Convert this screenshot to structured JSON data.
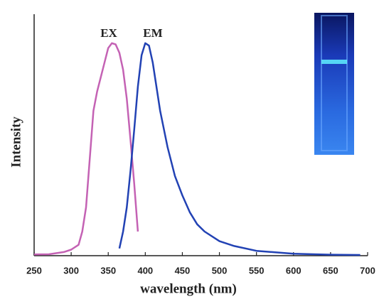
{
  "chart_data": {
    "type": "line",
    "xlabel": "wavelength (nm)",
    "ylabel": "Intensity",
    "xlim": [
      250,
      700
    ],
    "xticks": [
      250,
      300,
      350,
      400,
      450,
      500,
      550,
      600,
      650,
      700
    ],
    "ylim": [
      0,
      1
    ],
    "annotations": [
      "EX",
      "EM"
    ],
    "series": [
      {
        "name": "EX",
        "color": "#c462b4",
        "x": [
          250,
          270,
          290,
          300,
          310,
          315,
          320,
          325,
          330,
          335,
          340,
          345,
          350,
          355,
          360,
          365,
          370,
          375,
          380,
          385,
          390
        ],
        "values": [
          0.005,
          0.006,
          0.015,
          0.025,
          0.045,
          0.1,
          0.2,
          0.4,
          0.6,
          0.68,
          0.74,
          0.8,
          0.86,
          0.88,
          0.875,
          0.84,
          0.77,
          0.65,
          0.48,
          0.3,
          0.1
        ]
      },
      {
        "name": "EM",
        "color": "#2242b4",
        "x": [
          365,
          370,
          375,
          380,
          385,
          390,
          395,
          400,
          405,
          410,
          415,
          420,
          430,
          440,
          450,
          460,
          470,
          480,
          500,
          520,
          550,
          600,
          650,
          690
        ],
        "values": [
          0.03,
          0.1,
          0.2,
          0.35,
          0.52,
          0.7,
          0.83,
          0.88,
          0.87,
          0.8,
          0.7,
          0.6,
          0.45,
          0.33,
          0.25,
          0.18,
          0.13,
          0.1,
          0.06,
          0.04,
          0.02,
          0.008,
          0.004,
          0.003
        ]
      }
    ]
  }
}
